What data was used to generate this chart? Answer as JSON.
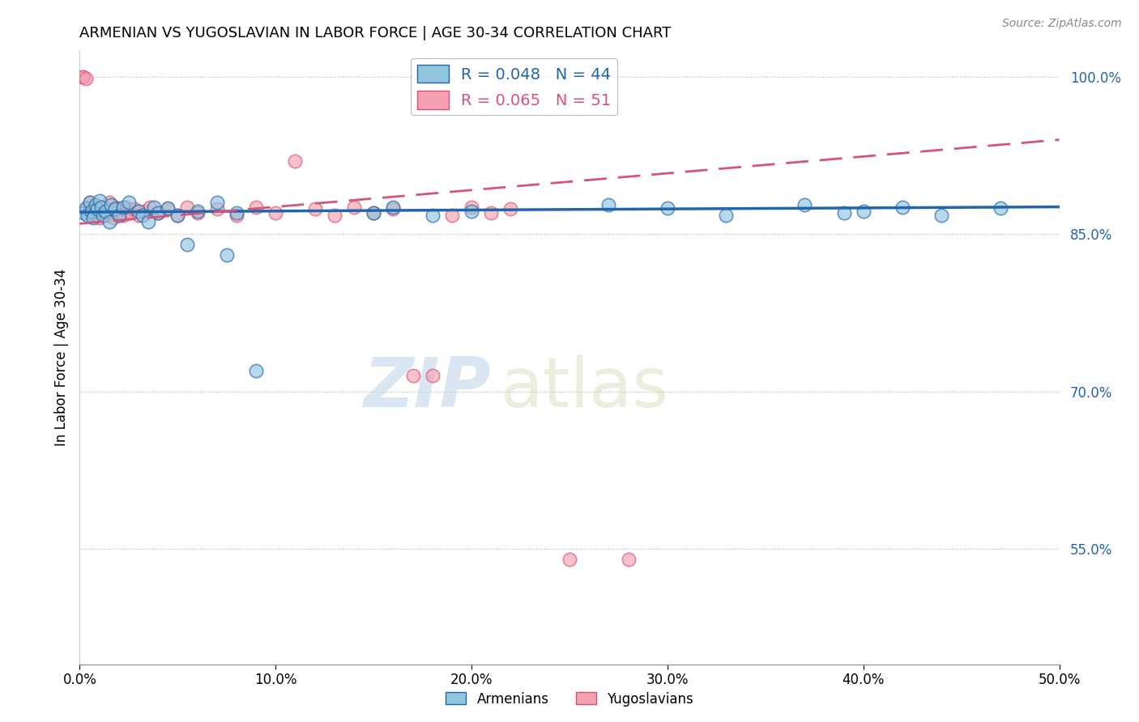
{
  "title": "ARMENIAN VS YUGOSLAVIAN IN LABOR FORCE | AGE 30-34 CORRELATION CHART",
  "source_text": "Source: ZipAtlas.com",
  "ylabel": "In Labor Force | Age 30-34",
  "watermark_zip": "ZIP",
  "watermark_atlas": "atlas",
  "xlim": [
    0.0,
    0.5
  ],
  "ylim": [
    0.44,
    1.025
  ],
  "xtick_labels": [
    "0.0%",
    "10.0%",
    "20.0%",
    "30.0%",
    "40.0%",
    "50.0%"
  ],
  "xtick_values": [
    0.0,
    0.1,
    0.2,
    0.3,
    0.4,
    0.5
  ],
  "ytick_labels_right": [
    "55.0%",
    "70.0%",
    "85.0%",
    "100.0%"
  ],
  "ytick_values_right": [
    0.55,
    0.7,
    0.85,
    1.0
  ],
  "armenian_R": 0.048,
  "armenian_N": 44,
  "yugoslavian_R": 0.065,
  "yugoslavian_N": 51,
  "armenian_color": "#92c5de",
  "yugoslavian_color": "#f4a0b0",
  "armenian_line_color": "#2166ac",
  "yugoslavian_line_color": "#d6537a",
  "blue_scatter_x": [
    0.002,
    0.003,
    0.004,
    0.005,
    0.006,
    0.007,
    0.008,
    0.009,
    0.01,
    0.011,
    0.012,
    0.013,
    0.015,
    0.016,
    0.018,
    0.02,
    0.022,
    0.025,
    0.03,
    0.032,
    0.035,
    0.038,
    0.04,
    0.045,
    0.05,
    0.055,
    0.06,
    0.07,
    0.075,
    0.08,
    0.09,
    0.15,
    0.16,
    0.18,
    0.2,
    0.27,
    0.3,
    0.33,
    0.37,
    0.39,
    0.4,
    0.42,
    0.44,
    0.47
  ],
  "blue_scatter_y": [
    0.87,
    0.875,
    0.868,
    0.88,
    0.872,
    0.866,
    0.878,
    0.874,
    0.882,
    0.876,
    0.868,
    0.872,
    0.862,
    0.878,
    0.874,
    0.868,
    0.876,
    0.88,
    0.872,
    0.868,
    0.862,
    0.876,
    0.87,
    0.875,
    0.868,
    0.84,
    0.872,
    0.88,
    0.83,
    0.87,
    0.72,
    0.87,
    0.876,
    0.868,
    0.872,
    0.878,
    0.875,
    0.868,
    0.878,
    0.87,
    0.872,
    0.876,
    0.868,
    0.875
  ],
  "pink_scatter_x": [
    0.001,
    0.002,
    0.003,
    0.004,
    0.005,
    0.005,
    0.006,
    0.007,
    0.008,
    0.009,
    0.01,
    0.011,
    0.012,
    0.013,
    0.014,
    0.015,
    0.016,
    0.017,
    0.018,
    0.019,
    0.02,
    0.022,
    0.024,
    0.026,
    0.028,
    0.03,
    0.033,
    0.036,
    0.04,
    0.045,
    0.05,
    0.055,
    0.06,
    0.07,
    0.08,
    0.09,
    0.1,
    0.11,
    0.12,
    0.13,
    0.14,
    0.15,
    0.16,
    0.17,
    0.18,
    0.19,
    0.2,
    0.21,
    0.22,
    0.25,
    0.28
  ],
  "pink_scatter_y": [
    1.0,
    1.0,
    0.998,
    0.875,
    0.87,
    0.88,
    0.874,
    0.876,
    0.868,
    0.872,
    0.866,
    0.876,
    0.87,
    0.874,
    0.868,
    0.88,
    0.872,
    0.866,
    0.876,
    0.87,
    0.874,
    0.868,
    0.876,
    0.87,
    0.874,
    0.868,
    0.872,
    0.876,
    0.87,
    0.874,
    0.868,
    0.876,
    0.87,
    0.874,
    0.868,
    0.876,
    0.87,
    0.92,
    0.874,
    0.868,
    0.876,
    0.87,
    0.874,
    0.715,
    0.715,
    0.868,
    0.876,
    0.87,
    0.874,
    0.54,
    0.54
  ],
  "blue_line_x0": 0.0,
  "blue_line_x1": 0.5,
  "blue_line_y0": 0.871,
  "blue_line_y1": 0.876,
  "pink_line_x0": 0.0,
  "pink_line_x1": 0.5,
  "pink_line_y0": 0.86,
  "pink_line_y1": 0.94
}
